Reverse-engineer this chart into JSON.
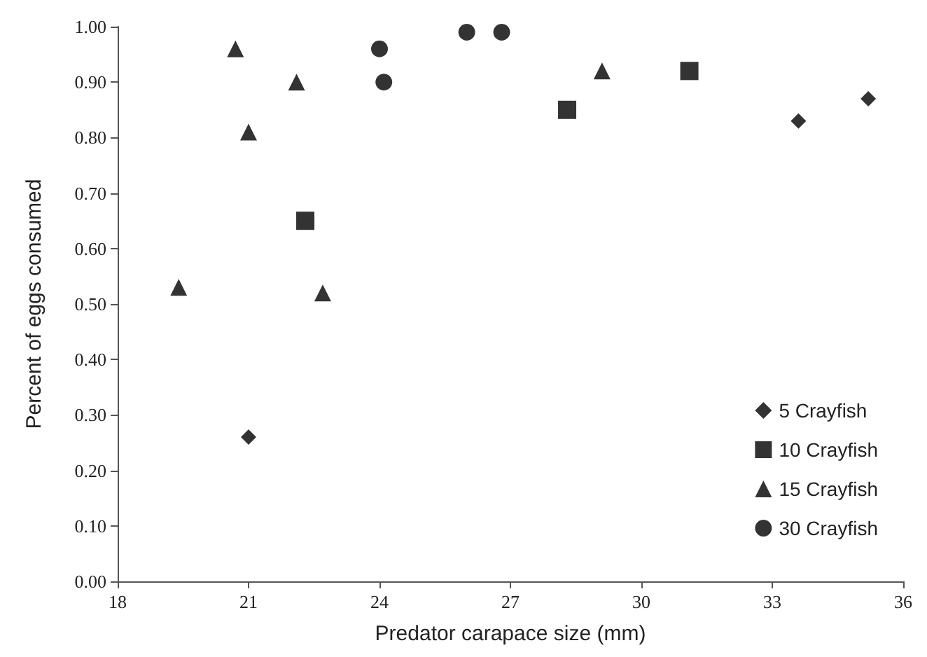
{
  "chart_data": {
    "type": "scatter",
    "xlabel": "Predator carapace size (mm)",
    "ylabel": "Percent of eggs consumed",
    "xlim": [
      18,
      36
    ],
    "xticks": [
      18,
      21,
      24,
      27,
      30,
      33,
      36
    ],
    "ylim": [
      0,
      1
    ],
    "yticks": [
      {
        "value": 0,
        "label": "0.00"
      },
      {
        "value": 0.1,
        "label": "0.10"
      },
      {
        "value": 0.2,
        "label": "0.20"
      },
      {
        "value": 0.3,
        "label": "0.30"
      },
      {
        "value": 0.4,
        "label": "0.40"
      },
      {
        "value": 0.5,
        "label": "0.50"
      },
      {
        "value": 0.6,
        "label": "0.60"
      },
      {
        "value": 0.7,
        "label": "0.70"
      },
      {
        "value": 0.8,
        "label": "0.80"
      },
      {
        "value": 0.9,
        "label": "0.90"
      },
      {
        "value": 1,
        "label": "1.00"
      }
    ],
    "grid": false,
    "legend": "bottom right",
    "series": [
      {
        "name": "5 Crayfish",
        "color": "#000000",
        "marker": "diamond",
        "x": [
          21.0,
          33.6,
          35.2
        ],
        "values": [
          0.26,
          0.83,
          0.87
        ]
      },
      {
        "name": "10 Crayfish",
        "color": "#000000",
        "marker": "square",
        "x": [
          22.3,
          28.3,
          31.1
        ],
        "values": [
          0.65,
          0.85,
          0.92
        ]
      },
      {
        "name": "15 Crayfish",
        "color": "#000000",
        "marker": "triangle",
        "x": [
          19.4,
          20.7,
          21.0,
          22.1,
          22.7,
          29.1
        ],
        "values": [
          0.53,
          0.96,
          0.81,
          0.9,
          0.52,
          0.92
        ]
      },
      {
        "name": "30 Crayfish",
        "color": "#000000",
        "marker": "circle",
        "x": [
          24.0,
          24.1,
          26.0,
          26.8
        ],
        "values": [
          0.96,
          0.9,
          0.99,
          0.99
        ]
      }
    ]
  }
}
